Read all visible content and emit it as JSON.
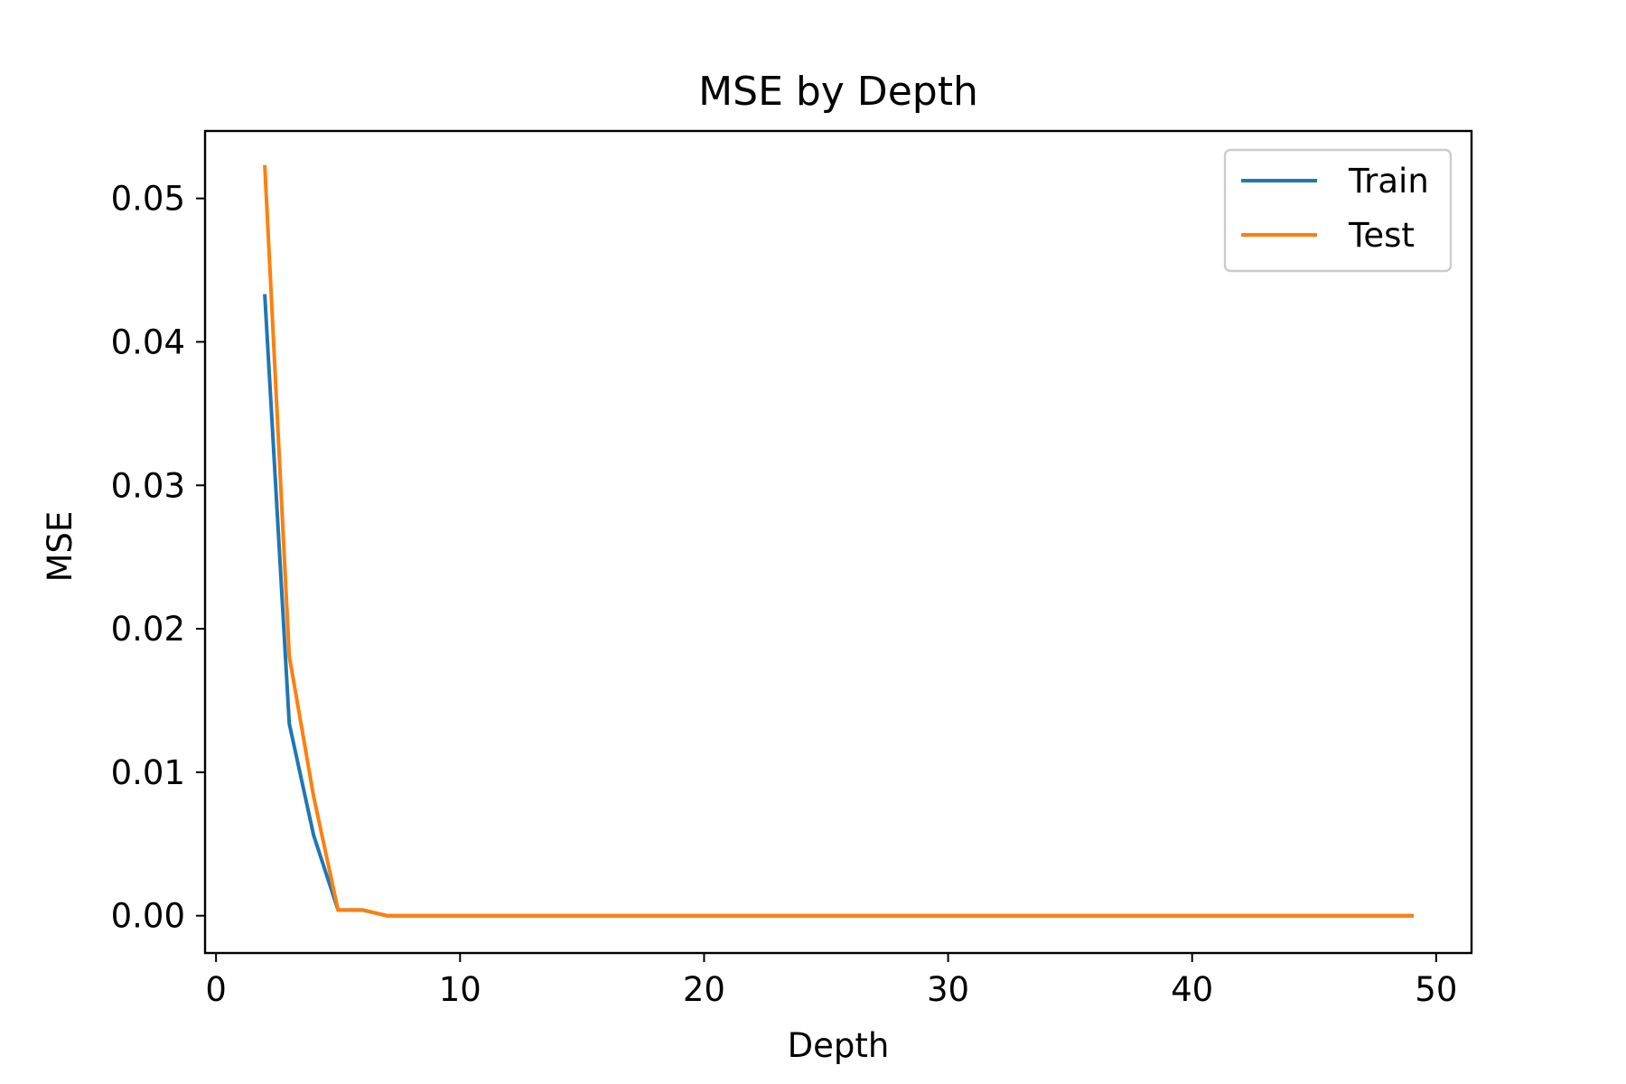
{
  "chart_data": {
    "type": "line",
    "title": "MSE by Depth",
    "xlabel": "Depth",
    "ylabel": "MSE",
    "xlim": [
      -0.45,
      51.45
    ],
    "ylim": [
      -0.0026,
      0.0547
    ],
    "xticks": [
      0,
      10,
      20,
      30,
      40,
      50
    ],
    "xtick_labels": [
      "0",
      "10",
      "20",
      "30",
      "40",
      "50"
    ],
    "yticks": [
      0.0,
      0.01,
      0.02,
      0.03,
      0.04,
      0.05
    ],
    "ytick_labels": [
      "0.00",
      "0.01",
      "0.02",
      "0.03",
      "0.04",
      "0.05"
    ],
    "grid": false,
    "legend": "top-right",
    "x": [
      2,
      3,
      4,
      5,
      6,
      7,
      8,
      9,
      10,
      11,
      12,
      13,
      14,
      15,
      16,
      17,
      18,
      19,
      20,
      21,
      22,
      23,
      24,
      25,
      26,
      27,
      28,
      29,
      30,
      31,
      32,
      33,
      34,
      35,
      36,
      37,
      38,
      39,
      40,
      41,
      42,
      43,
      44,
      45,
      46,
      47,
      48,
      49
    ],
    "series": [
      {
        "name": "Train",
        "color": "#1f77b4",
        "values": [
          0.0432,
          0.0134,
          0.0056,
          0.0004,
          0.0004,
          0.0,
          0.0,
          0.0,
          0.0,
          0.0,
          0.0,
          0.0,
          0.0,
          0.0,
          0.0,
          0.0,
          0.0,
          0.0,
          0.0,
          0.0,
          0.0,
          0.0,
          0.0,
          0.0,
          0.0,
          0.0,
          0.0,
          0.0,
          0.0,
          0.0,
          0.0,
          0.0,
          0.0,
          0.0,
          0.0,
          0.0,
          0.0,
          0.0,
          0.0,
          0.0,
          0.0,
          0.0,
          0.0,
          0.0,
          0.0,
          0.0,
          0.0,
          0.0
        ]
      },
      {
        "name": "Test",
        "color": "#ff7f0e",
        "values": [
          0.0522,
          0.0181,
          0.0083,
          0.0004,
          0.0004,
          0.0,
          0.0,
          0.0,
          0.0,
          0.0,
          0.0,
          0.0,
          0.0,
          0.0,
          0.0,
          0.0,
          0.0,
          0.0,
          0.0,
          0.0,
          0.0,
          0.0,
          0.0,
          0.0,
          0.0,
          0.0,
          0.0,
          0.0,
          0.0,
          0.0,
          0.0,
          0.0,
          0.0,
          0.0,
          0.0,
          0.0,
          0.0,
          0.0,
          0.0,
          0.0,
          0.0,
          0.0,
          0.0,
          0.0,
          0.0,
          0.0,
          0.0,
          0.0
        ]
      }
    ]
  }
}
